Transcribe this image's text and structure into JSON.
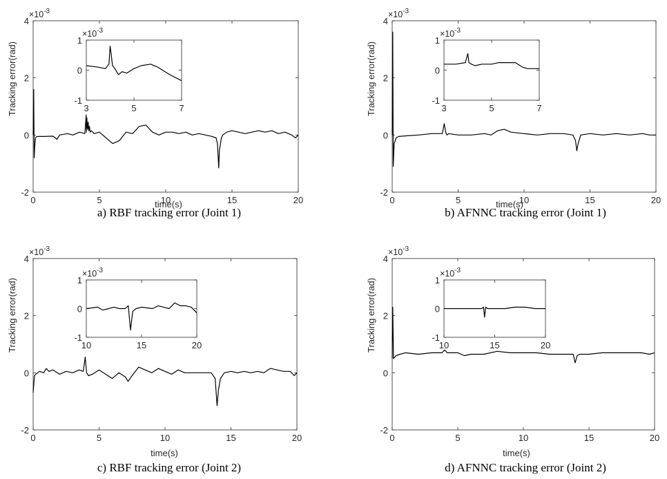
{
  "chart_data": [
    {
      "type": "line",
      "caption": "a) RBF tracking error (Joint 1)",
      "xlabel": "time(s)",
      "ylabel": "Tracking error(rad)",
      "scale_label": "×10",
      "scale_exponent": "-3",
      "xlim": [
        0,
        20
      ],
      "ylim": [
        -2,
        4
      ],
      "xticks": [
        0,
        5,
        10,
        15,
        20
      ],
      "yticks": [
        -2,
        0,
        2,
        4
      ],
      "series": [
        {
          "x": [
            0,
            0.04,
            0.08,
            0.12,
            0.18,
            0.25,
            0.4,
            0.8,
            1.5,
            1.8,
            2.0,
            2.6,
            3.0,
            3.5,
            3.9,
            4.0,
            4.02,
            4.05,
            4.1,
            4.15,
            4.2,
            4.25,
            4.3,
            4.4,
            4.6,
            5.0,
            5.5,
            6.0,
            6.5,
            7.0,
            7.5,
            8.0,
            8.5,
            9.0,
            9.5,
            10.0,
            10.5,
            11.0,
            11.5,
            12.0,
            12.5,
            13.0,
            13.5,
            13.8,
            13.9,
            14.0,
            14.05,
            14.1,
            14.2,
            14.3,
            14.6,
            15.0,
            15.5,
            16.0,
            16.5,
            17.0,
            17.5,
            18.0,
            18.5,
            19.0,
            19.5,
            19.8,
            20.0
          ],
          "y": [
            0,
            1.6,
            -0.8,
            -0.4,
            -0.1,
            -0.06,
            -0.05,
            -0.05,
            -0.04,
            -0.15,
            0.0,
            0.05,
            0.0,
            0.1,
            0.05,
            0.7,
            0.1,
            0.6,
            0.2,
            0.45,
            0.15,
            0.3,
            0.1,
            0.15,
            0.05,
            0.1,
            -0.1,
            -0.3,
            -0.2,
            0.1,
            0.05,
            0.3,
            0.35,
            0.1,
            0.0,
            0.1,
            0.1,
            0.05,
            0.1,
            0.0,
            0.05,
            0.0,
            -0.05,
            -0.1,
            -0.3,
            -1.15,
            -0.5,
            -0.4,
            -0.1,
            0.0,
            0.1,
            0.15,
            0.1,
            0.05,
            0.1,
            0.15,
            0.1,
            0.15,
            0.05,
            0.1,
            0.0,
            -0.1,
            0.0
          ]
        }
      ],
      "inset": {
        "xlim": [
          3,
          7
        ],
        "ylim": [
          -1,
          1
        ],
        "xticks": [
          3,
          5,
          7
        ],
        "yticks": [
          -1,
          0,
          1
        ],
        "scale_label": "×10",
        "scale_exponent": "-3",
        "series": [
          {
            "x": [
              3,
              3.5,
              3.8,
              3.95,
              4.0,
              4.05,
              4.1,
              4.2,
              4.35,
              4.5,
              4.7,
              5.0,
              5.3,
              5.7,
              6.0,
              6.5,
              7.0
            ],
            "y": [
              0.15,
              0.1,
              0.05,
              0.2,
              0.8,
              0.5,
              0.15,
              0.05,
              -0.15,
              -0.05,
              -0.1,
              0.05,
              0.15,
              0.2,
              0.1,
              -0.15,
              -0.35
            ]
          }
        ]
      }
    },
    {
      "type": "line",
      "caption": "b) AFNNC tracking error (Joint 1)",
      "xlabel": "time(s)",
      "ylabel": "Tracking error(rad)",
      "scale_label": "×10",
      "scale_exponent": "-3",
      "xlim": [
        0,
        20
      ],
      "ylim": [
        -2,
        4
      ],
      "xticks": [
        0,
        5,
        10,
        15,
        20
      ],
      "yticks": [
        -2,
        0,
        2,
        4
      ],
      "series": [
        {
          "x": [
            0,
            0.04,
            0.08,
            0.15,
            0.3,
            0.5,
            1.0,
            2.0,
            3.0,
            3.8,
            3.95,
            4.05,
            4.15,
            4.3,
            5.0,
            6.0,
            7.0,
            7.5,
            8.0,
            8.5,
            9.0,
            10.0,
            11.0,
            12.0,
            13.0,
            13.7,
            13.9,
            14.0,
            14.1,
            14.3,
            15.0,
            16.0,
            17.0,
            18.0,
            19.0,
            19.5,
            20.0
          ],
          "y": [
            0,
            3.6,
            -1.1,
            -0.3,
            -0.1,
            -0.05,
            -0.03,
            0.0,
            0.05,
            0.05,
            0.4,
            0.1,
            0.0,
            0.05,
            0.0,
            0.0,
            0.05,
            0.0,
            0.15,
            0.2,
            0.1,
            0.05,
            0.0,
            0.05,
            0.05,
            0.0,
            -0.2,
            -0.55,
            -0.3,
            0.0,
            0.05,
            0.0,
            0.05,
            0.0,
            0.05,
            0.0,
            0.0
          ]
        }
      ],
      "inset": {
        "xlim": [
          3,
          7
        ],
        "ylim": [
          -1,
          1
        ],
        "xticks": [
          3,
          5,
          7
        ],
        "yticks": [
          -1,
          0,
          1
        ],
        "scale_label": "×10",
        "scale_exponent": "-3",
        "series": [
          {
            "x": [
              3,
              3.5,
              3.9,
              4.0,
              4.05,
              4.15,
              4.3,
              4.6,
              5.0,
              5.3,
              5.5,
              6.0,
              6.3,
              6.5,
              7.0
            ],
            "y": [
              0.2,
              0.2,
              0.25,
              0.55,
              0.25,
              0.2,
              0.15,
              0.2,
              0.2,
              0.25,
              0.25,
              0.25,
              0.1,
              0.05,
              0.05
            ]
          }
        ]
      }
    },
    {
      "type": "line",
      "caption": "c) RBF tracking error (Joint 2)",
      "xlabel": "time(s)",
      "ylabel": "Tracking error(rad)",
      "scale_label": "×10",
      "scale_exponent": "-3",
      "xlim": [
        0,
        20
      ],
      "ylim": [
        -2,
        4
      ],
      "xticks": [
        0,
        5,
        10,
        15,
        20
      ],
      "yticks": [
        -2,
        0,
        2,
        4
      ],
      "series": [
        {
          "x": [
            0,
            0.1,
            0.2,
            0.5,
            0.8,
            1.0,
            1.2,
            1.5,
            2.0,
            2.5,
            3.0,
            3.5,
            3.8,
            3.95,
            4.05,
            4.2,
            4.5,
            5.0,
            5.5,
            6.0,
            6.5,
            7.0,
            7.2,
            7.5,
            8.0,
            8.5,
            9.0,
            9.5,
            10.0,
            10.5,
            11.0,
            11.5,
            12.0,
            12.5,
            13.0,
            13.5,
            13.8,
            13.95,
            14.05,
            14.2,
            14.5,
            15.0,
            15.5,
            16.0,
            16.5,
            17.0,
            17.5,
            17.8,
            18.0,
            18.5,
            19.0,
            19.5,
            19.8,
            20.0
          ],
          "y": [
            -0.7,
            -0.1,
            -0.05,
            0.05,
            0.0,
            0.15,
            0.05,
            0.1,
            -0.05,
            0.05,
            0.0,
            0.1,
            0.05,
            0.55,
            0.0,
            -0.1,
            -0.05,
            0.1,
            -0.05,
            -0.2,
            0.0,
            -0.15,
            -0.3,
            -0.1,
            0.2,
            0.1,
            0.0,
            0.15,
            0.05,
            -0.05,
            0.1,
            0.0,
            0.0,
            0.0,
            0.0,
            0.0,
            -0.2,
            -1.15,
            -0.6,
            -0.2,
            0.0,
            0.05,
            0.0,
            0.05,
            0.0,
            0.05,
            0.0,
            0.1,
            0.15,
            0.1,
            0.05,
            0.05,
            -0.1,
            0.0
          ]
        }
      ],
      "inset": {
        "xlim": [
          10,
          20
        ],
        "ylim": [
          -1,
          1
        ],
        "xticks": [
          10,
          15,
          20
        ],
        "yticks": [
          -1,
          0,
          1
        ],
        "scale_label": "×10",
        "scale_exponent": "-3",
        "series": [
          {
            "x": [
              10,
              11,
              11.5,
              12,
              12.5,
              13,
              13.5,
              13.8,
              14.0,
              14.2,
              14.5,
              15,
              16,
              16.5,
              17,
              17.5,
              18,
              18.5,
              19,
              19.5,
              20
            ],
            "y": [
              0.0,
              0.05,
              -0.05,
              0.0,
              0.05,
              0.0,
              0.0,
              0.1,
              -0.75,
              -0.1,
              0.0,
              0.05,
              0.0,
              0.1,
              0.05,
              0.0,
              0.2,
              0.1,
              0.1,
              0.05,
              -0.15
            ]
          }
        ]
      }
    },
    {
      "type": "line",
      "caption": "d) AFNNC tracking error (Joint 2)",
      "xlabel": "time(s)",
      "ylabel": "Tracking error(rad)",
      "scale_label": "×10",
      "scale_exponent": "-3",
      "xlim": [
        0,
        20
      ],
      "ylim": [
        -2,
        4
      ],
      "xticks": [
        0,
        5,
        10,
        15,
        20
      ],
      "yticks": [
        -2,
        0,
        2,
        4
      ],
      "series": [
        {
          "x": [
            0,
            0.04,
            0.1,
            0.3,
            0.6,
            1.0,
            2.0,
            3.0,
            3.8,
            4.0,
            4.2,
            5.0,
            5.5,
            6.0,
            7.0,
            8.0,
            9.0,
            10.0,
            11.0,
            12.0,
            13.0,
            13.8,
            13.95,
            14.1,
            14.3,
            15.0,
            16.0,
            17.0,
            18.0,
            19.0,
            19.6,
            20.0
          ],
          "y": [
            0.5,
            2.3,
            0.5,
            0.6,
            0.65,
            0.7,
            0.65,
            0.7,
            0.7,
            0.8,
            0.7,
            0.7,
            0.6,
            0.65,
            0.65,
            0.75,
            0.7,
            0.7,
            0.7,
            0.65,
            0.65,
            0.65,
            0.35,
            0.6,
            0.65,
            0.65,
            0.7,
            0.7,
            0.7,
            0.7,
            0.65,
            0.7
          ]
        }
      ],
      "inset": {
        "xlim": [
          10,
          20
        ],
        "ylim": [
          -1,
          1
        ],
        "xticks": [
          10,
          15,
          20
        ],
        "yticks": [
          -1,
          0,
          1
        ],
        "scale_label": "×10",
        "scale_exponent": "-3",
        "series": [
          {
            "x": [
              10,
              11,
              12,
              13,
              13.7,
              13.9,
              14.0,
              14.1,
              14.3,
              15,
              16,
              17,
              18,
              19,
              20
            ],
            "y": [
              0.0,
              0.0,
              0.0,
              0.0,
              0.0,
              0.05,
              -0.3,
              0.05,
              0.0,
              0.0,
              0.0,
              0.05,
              0.05,
              0.0,
              0.0
            ]
          }
        ]
      }
    }
  ]
}
